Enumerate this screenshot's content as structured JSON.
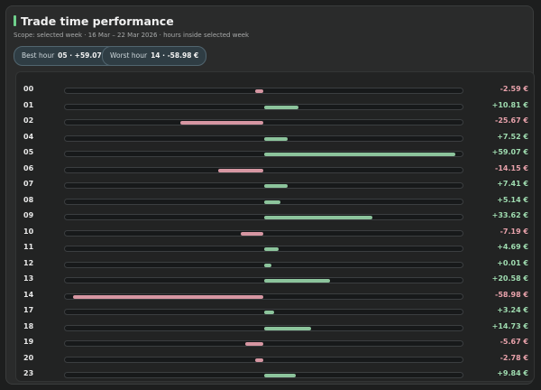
{
  "header": {
    "title": "Trade time performance",
    "scope": "Scope: selected week · 16 Mar – 22 Mar 2026 · hours inside selected week"
  },
  "pills": [
    {
      "label": "Best hour",
      "value": "05 · +59.07 €"
    },
    {
      "label": "Worst hour",
      "value": "14 · -58.98 €"
    }
  ],
  "colors": {
    "positive": "#8cc49c",
    "negative": "#d696a2",
    "positive_text": "#9fdcb0",
    "negative_text": "#e8a2ab"
  },
  "rows": [
    {
      "hour": "00",
      "value": -2.59,
      "value_label": "-2.59 €"
    },
    {
      "hour": "01",
      "value": 10.81,
      "value_label": "+10.81 €"
    },
    {
      "hour": "02",
      "value": -25.67,
      "value_label": "-25.67 €"
    },
    {
      "hour": "04",
      "value": 7.52,
      "value_label": "+7.52 €"
    },
    {
      "hour": "05",
      "value": 59.07,
      "value_label": "+59.07 €"
    },
    {
      "hour": "06",
      "value": -14.15,
      "value_label": "-14.15 €"
    },
    {
      "hour": "07",
      "value": 7.41,
      "value_label": "+7.41 €"
    },
    {
      "hour": "08",
      "value": 5.14,
      "value_label": "+5.14 €"
    },
    {
      "hour": "09",
      "value": 33.62,
      "value_label": "+33.62 €"
    },
    {
      "hour": "10",
      "value": -7.19,
      "value_label": "-7.19 €"
    },
    {
      "hour": "11",
      "value": 4.69,
      "value_label": "+4.69 €"
    },
    {
      "hour": "12",
      "value": 0.01,
      "value_label": "+0.01 €"
    },
    {
      "hour": "13",
      "value": 20.58,
      "value_label": "+20.58 €"
    },
    {
      "hour": "14",
      "value": -58.98,
      "value_label": "-58.98 €"
    },
    {
      "hour": "17",
      "value": 3.24,
      "value_label": "+3.24 €"
    },
    {
      "hour": "18",
      "value": 14.73,
      "value_label": "+14.73 €"
    },
    {
      "hour": "19",
      "value": -5.67,
      "value_label": "-5.67 €"
    },
    {
      "hour": "20",
      "value": -2.78,
      "value_label": "-2.78 €"
    },
    {
      "hour": "23",
      "value": 9.84,
      "value_label": "+9.84 €"
    }
  ]
}
